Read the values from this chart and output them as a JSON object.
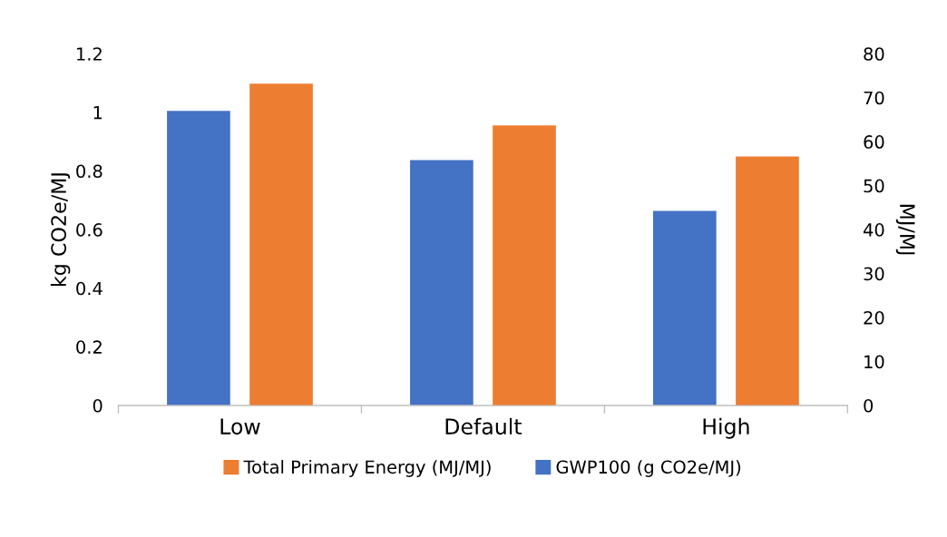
{
  "chart_data": {
    "type": "bar",
    "categories": [
      "Low",
      "Default",
      "High"
    ],
    "ylabel": "kg CO2e/MJ",
    "y2label": "MJ/MJ",
    "series": [
      {
        "name": "GWP100 (g CO2e/MJ)",
        "color": "#4472c4",
        "values": [
          1.005,
          0.837,
          0.664
        ]
      },
      {
        "name": "Total Primary Energy (MJ/MJ)",
        "color": "#ed7d31",
        "values": [
          73.2,
          63.7,
          56.6
        ],
        "axis": "y2"
      }
    ],
    "ylim": [
      0,
      1.2
    ],
    "yticks": [
      0,
      0.2,
      0.4,
      0.6,
      0.8,
      1,
      1.2
    ],
    "y2lim": [
      0,
      80
    ],
    "y2ticks": [
      0,
      10,
      20,
      30,
      40,
      50,
      60,
      70,
      80
    ],
    "grid": false,
    "legend": "bottom"
  }
}
